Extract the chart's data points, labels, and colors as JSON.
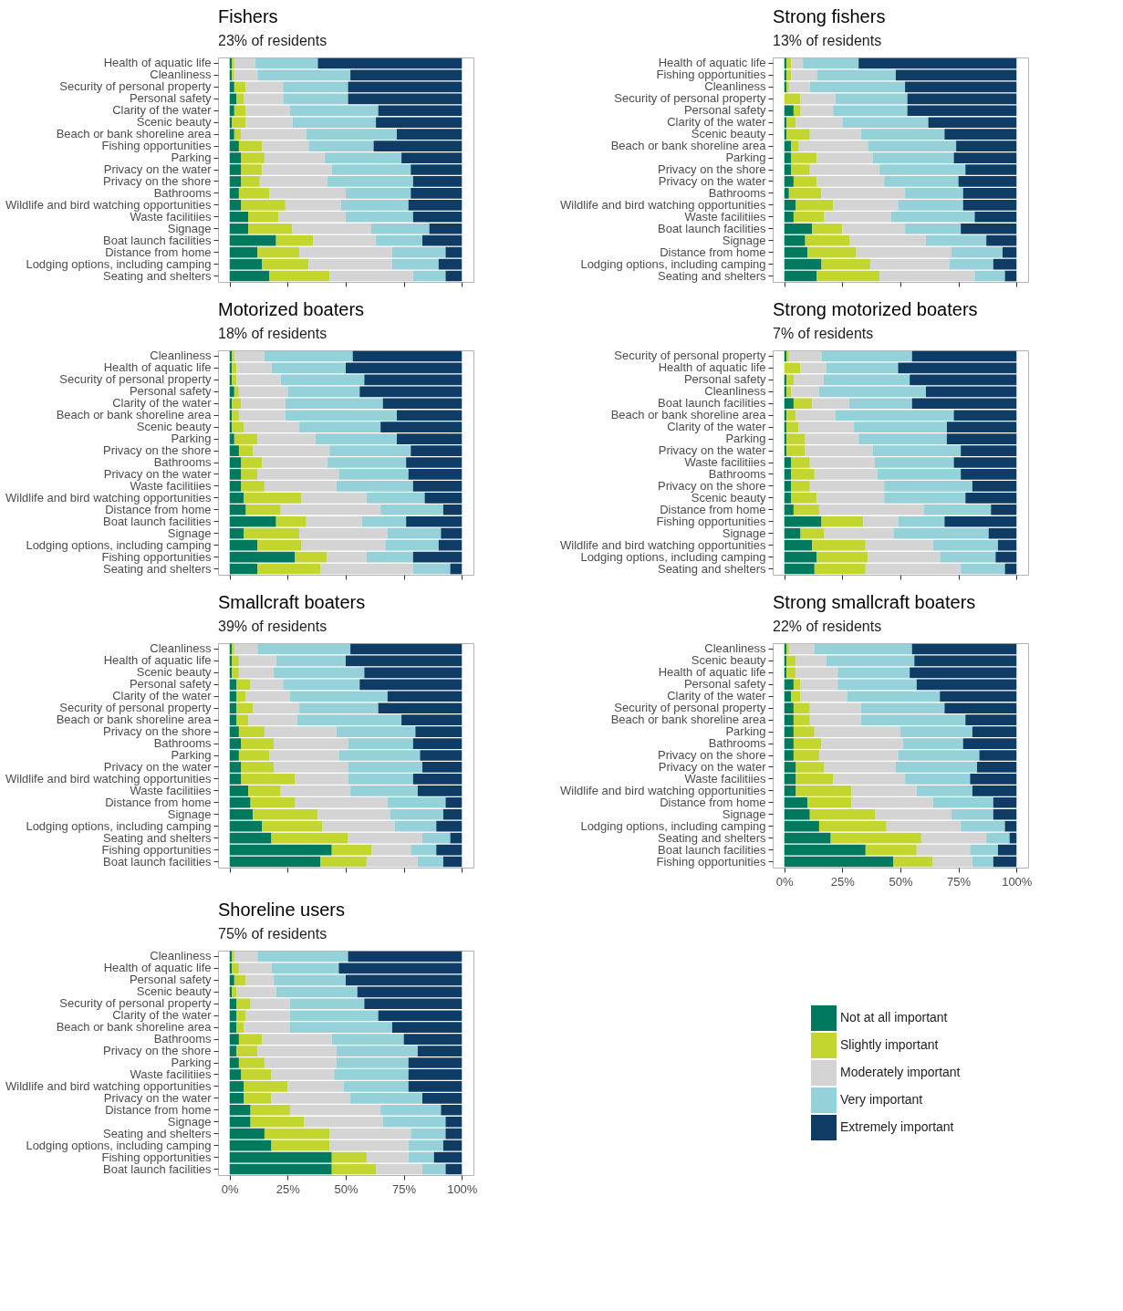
{
  "chart_data": [
    {
      "type": "bar",
      "orientation": "horizontal",
      "stacked": true,
      "title": "Fishers",
      "subtitle": "23% of residents",
      "xlim": [
        -5,
        105
      ],
      "xticks": [
        {
          "value": 0,
          "label": null
        },
        {
          "value": 25,
          "label": null
        },
        {
          "value": 50,
          "label": null
        },
        {
          "value": 75,
          "label": null
        },
        {
          "value": 100,
          "label": null
        }
      ],
      "tick_labels": "y",
      "categories": [
        "Health of aquatic life",
        "Cleanliness",
        "Security of personal property",
        "Personal safety",
        "Clarity of the water",
        "Scenic beauty",
        "Beach or bank shoreline area",
        "Fishing opportunities",
        "Parking",
        "Privacy on the water",
        "Privacy on the shore",
        "Bathrooms",
        "Wildlife and bird watching opportunities",
        "Waste facilitiies",
        "Signage",
        "Boat launch facilities",
        "Distance from home",
        "Lodging options, including camping",
        "Seating and shelters"
      ],
      "series": [
        {
          "color": "#007a5e",
          "values": [
            1,
            1,
            2,
            3,
            2,
            1,
            2,
            4,
            5,
            5,
            5,
            4,
            5,
            8,
            8,
            20,
            12,
            14,
            17
          ]
        },
        {
          "color": "#c3d52f",
          "values": [
            1,
            1,
            5,
            3,
            5,
            6,
            3,
            10,
            10,
            9,
            8,
            13,
            19,
            13,
            19,
            16,
            18,
            20,
            26
          ]
        },
        {
          "color": "#d4d4d4",
          "values": [
            9,
            10,
            16,
            17,
            19,
            20,
            28,
            20,
            26,
            30,
            29,
            33,
            24,
            29,
            34,
            27,
            40,
            36,
            36
          ]
        },
        {
          "color": "#95d1d9",
          "values": [
            27,
            40,
            28,
            28,
            38,
            36,
            39,
            28,
            33,
            34,
            37,
            28,
            29,
            29,
            25,
            20,
            23,
            20,
            14
          ]
        },
        {
          "color": "#0e3c65",
          "values": [
            62,
            48,
            49,
            49,
            36,
            37,
            28,
            38,
            26,
            22,
            21,
            22,
            23,
            21,
            14,
            17,
            7,
            10,
            7
          ]
        }
      ]
    },
    {
      "type": "bar",
      "orientation": "horizontal",
      "stacked": true,
      "title": "Strong fishers",
      "subtitle": "13% of residents",
      "xlim": [
        -5,
        105
      ],
      "xticks": [
        {
          "value": 0,
          "label": null
        },
        {
          "value": 25,
          "label": null
        },
        {
          "value": 50,
          "label": null
        },
        {
          "value": 75,
          "label": null
        },
        {
          "value": 100,
          "label": null
        }
      ],
      "tick_labels": "y",
      "categories": [
        "Health of aquatic life",
        "Fishing opportunities",
        "Cleanliness",
        "Security of personal property",
        "Personal safety",
        "Clarity of the water",
        "Scenic beauty",
        "Beach or bank shoreline area",
        "Parking",
        "Privacy on the shore",
        "Privacy on the water",
        "Bathrooms",
        "Wildlife and bird watching opportunities",
        "Waste facilitiies",
        "Boat launch facilities",
        "Signage",
        "Distance from home",
        "Lodging options, including camping",
        "Seating and shelters"
      ],
      "series": [
        {
          "color": "#007a5e",
          "values": [
            1,
            1,
            1,
            0,
            4,
            1,
            1,
            3,
            3,
            3,
            4,
            2,
            5,
            4,
            12,
            9,
            10,
            16,
            14
          ]
        },
        {
          "color": "#c3d52f",
          "values": [
            2,
            2,
            1,
            7,
            3,
            4,
            10,
            3,
            11,
            8,
            10,
            14,
            16,
            13,
            13,
            19,
            21,
            21,
            27
          ]
        },
        {
          "color": "#d4d4d4",
          "values": [
            5,
            11,
            9,
            15,
            14,
            20,
            22,
            30,
            24,
            30,
            29,
            36,
            28,
            29,
            27,
            33,
            41,
            34,
            41
          ]
        },
        {
          "color": "#95d1d9",
          "values": [
            24,
            34,
            41,
            31,
            32,
            37,
            36,
            38,
            35,
            37,
            32,
            25,
            28,
            36,
            24,
            26,
            22,
            19,
            13
          ]
        },
        {
          "color": "#0e3c65",
          "values": [
            68,
            52,
            48,
            47,
            47,
            38,
            31,
            26,
            27,
            22,
            25,
            23,
            23,
            18,
            24,
            13,
            6,
            10,
            5
          ]
        }
      ]
    },
    {
      "type": "bar",
      "orientation": "horizontal",
      "stacked": true,
      "title": "Motorized boaters",
      "subtitle": "18% of residents",
      "xlim": [
        -5,
        105
      ],
      "xticks": [
        {
          "value": 0,
          "label": null
        },
        {
          "value": 25,
          "label": null
        },
        {
          "value": 50,
          "label": null
        },
        {
          "value": 75,
          "label": null
        },
        {
          "value": 100,
          "label": null
        }
      ],
      "tick_labels": "y",
      "categories": [
        "Cleanliness",
        "Health of aquatic life",
        "Security of personal property",
        "Personal safety",
        "Clarity of the water",
        "Beach or bank shoreline area",
        "Scenic beauty",
        "Parking",
        "Privacy on the shore",
        "Bathrooms",
        "Privacy on the water",
        "Waste facilitiies",
        "Wildlife and bird watching opportunities",
        "Distance from home",
        "Boat launch facilities",
        "Signage",
        "Lodging options, including camping",
        "Fishing opportunities",
        "Seating and shelters"
      ],
      "series": [
        {
          "color": "#007a5e",
          "values": [
            1,
            1,
            1,
            2,
            1,
            1,
            1,
            2,
            4,
            5,
            5,
            5,
            6,
            7,
            20,
            6,
            12,
            28,
            12
          ]
        },
        {
          "color": "#c3d52f",
          "values": [
            1,
            2,
            2,
            2,
            4,
            3,
            5,
            10,
            6,
            9,
            7,
            10,
            25,
            15,
            13,
            24,
            19,
            14,
            27
          ]
        },
        {
          "color": "#d4d4d4",
          "values": [
            13,
            15,
            19,
            21,
            19,
            20,
            24,
            25,
            33,
            28,
            35,
            31,
            28,
            43,
            24,
            38,
            36,
            17,
            40
          ]
        },
        {
          "color": "#95d1d9",
          "values": [
            38,
            32,
            36,
            31,
            42,
            48,
            35,
            35,
            35,
            34,
            30,
            33,
            25,
            27,
            19,
            23,
            23,
            20,
            16
          ]
        },
        {
          "color": "#0e3c65",
          "values": [
            47,
            50,
            42,
            44,
            34,
            28,
            35,
            28,
            22,
            24,
            23,
            21,
            16,
            8,
            24,
            9,
            10,
            21,
            5
          ]
        }
      ]
    },
    {
      "type": "bar",
      "orientation": "horizontal",
      "stacked": true,
      "title": "Strong motorized boaters",
      "subtitle": "7% of residents",
      "xlim": [
        -5,
        105
      ],
      "xticks": [
        {
          "value": 0,
          "label": null
        },
        {
          "value": 25,
          "label": null
        },
        {
          "value": 50,
          "label": null
        },
        {
          "value": 75,
          "label": null
        },
        {
          "value": 100,
          "label": null
        }
      ],
      "tick_labels": "y",
      "categories": [
        "Security of personal property",
        "Health of aquatic life",
        "Personal safety",
        "Cleanliness",
        "Boat launch facilities",
        "Beach or bank shoreline area",
        "Clarity of the water",
        "Parking",
        "Privacy on the water",
        "Waste facilitiies",
        "Bathrooms",
        "Privacy on the shore",
        "Scenic beauty",
        "Distance from home",
        "Fishing opportunities",
        "Signage",
        "Wildlife and bird watching opportunities",
        "Lodging options, including camping",
        "Seating and shelters"
      ],
      "series": [
        {
          "color": "#007a5e",
          "values": [
            1,
            0,
            1,
            1,
            4,
            1,
            1,
            1,
            1,
            3,
            3,
            3,
            3,
            4,
            16,
            7,
            12,
            14,
            13
          ]
        },
        {
          "color": "#c3d52f",
          "values": [
            1,
            7,
            3,
            2,
            8,
            4,
            5,
            8,
            8,
            8,
            10,
            8,
            11,
            11,
            18,
            10,
            23,
            22,
            22
          ]
        },
        {
          "color": "#d4d4d4",
          "values": [
            14,
            11,
            13,
            12,
            16,
            17,
            24,
            23,
            29,
            28,
            27,
            32,
            29,
            45,
            15,
            30,
            29,
            31,
            41
          ]
        },
        {
          "color": "#95d1d9",
          "values": [
            39,
            31,
            37,
            46,
            27,
            51,
            40,
            38,
            38,
            34,
            36,
            38,
            35,
            29,
            20,
            41,
            28,
            24,
            19
          ]
        },
        {
          "color": "#0e3c65",
          "values": [
            45,
            51,
            46,
            39,
            45,
            27,
            30,
            30,
            24,
            27,
            24,
            19,
            22,
            11,
            31,
            12,
            8,
            9,
            5
          ]
        }
      ]
    },
    {
      "type": "bar",
      "orientation": "horizontal",
      "stacked": true,
      "title": "Smallcraft boaters",
      "subtitle": "39% of residents",
      "xlim": [
        -5,
        105
      ],
      "xticks": [
        {
          "value": 0,
          "label": null
        },
        {
          "value": 25,
          "label": null
        },
        {
          "value": 50,
          "label": null
        },
        {
          "value": 75,
          "label": null
        },
        {
          "value": 100,
          "label": null
        }
      ],
      "tick_labels": "y",
      "categories": [
        "Cleanliness",
        "Health of aquatic life",
        "Scenic beauty",
        "Personal safety",
        "Clarity of the water",
        "Security of personal property",
        "Beach or bank shoreline area",
        "Privacy on the shore",
        "Bathrooms",
        "Parking",
        "Privacy on the water",
        "Wildlife and bird watching opportunities",
        "Waste facilitiies",
        "Distance from home",
        "Signage",
        "Lodging options, including camping",
        "Seating and shelters",
        "Fishing opportunities",
        "Boat launch facilities"
      ],
      "series": [
        {
          "color": "#007a5e",
          "values": [
            1,
            1,
            1,
            3,
            3,
            3,
            3,
            4,
            5,
            4,
            5,
            5,
            8,
            9,
            10,
            14,
            18,
            44,
            39
          ]
        },
        {
          "color": "#c3d52f",
          "values": [
            1,
            3,
            3,
            6,
            4,
            7,
            5,
            11,
            14,
            13,
            14,
            23,
            14,
            19,
            28,
            26,
            33,
            17,
            20
          ]
        },
        {
          "color": "#d4d4d4",
          "values": [
            10,
            16,
            15,
            14,
            19,
            20,
            21,
            31,
            32,
            30,
            32,
            23,
            30,
            40,
            31,
            31,
            32,
            17,
            22
          ]
        },
        {
          "color": "#95d1d9",
          "values": [
            40,
            30,
            39,
            33,
            42,
            34,
            45,
            34,
            28,
            35,
            32,
            28,
            29,
            25,
            23,
            18,
            12,
            11,
            11
          ]
        },
        {
          "color": "#0e3c65",
          "values": [
            48,
            50,
            42,
            44,
            32,
            36,
            26,
            20,
            21,
            18,
            17,
            21,
            19,
            7,
            8,
            11,
            5,
            11,
            8
          ]
        }
      ]
    },
    {
      "type": "bar",
      "orientation": "horizontal",
      "stacked": true,
      "title": "Strong smallcraft boaters",
      "subtitle": "22% of residents",
      "xlim": [
        -5,
        105
      ],
      "xticks": [
        {
          "value": 0,
          "label": "0%"
        },
        {
          "value": 25,
          "label": "25%"
        },
        {
          "value": 50,
          "label": "50%"
        },
        {
          "value": 75,
          "label": "75%"
        },
        {
          "value": 100,
          "label": "100%"
        }
      ],
      "categories": [
        "Cleanliness",
        "Scenic beauty",
        "Health of aquatic life",
        "Personal safety",
        "Clarity of the water",
        "Security of personal property",
        "Beach or bank shoreline area",
        "Parking",
        "Bathrooms",
        "Privacy on the shore",
        "Privacy on the water",
        "Waste facilitiies",
        "Wildlife and bird watching opportunities",
        "Distance from home",
        "Signage",
        "Lodging options, including camping",
        "Seating and shelters",
        "Boat launch facilities",
        "Fishing opportunities"
      ],
      "series": [
        {
          "color": "#007a5e",
          "values": [
            1,
            1,
            1,
            4,
            3,
            4,
            4,
            4,
            4,
            4,
            5,
            5,
            5,
            10,
            11,
            15,
            20,
            35,
            47
          ]
        },
        {
          "color": "#c3d52f",
          "values": [
            1,
            4,
            4,
            3,
            4,
            7,
            7,
            9,
            12,
            11,
            12,
            16,
            24,
            19,
            28,
            29,
            39,
            22,
            17
          ]
        },
        {
          "color": "#d4d4d4",
          "values": [
            11,
            13,
            18,
            16,
            20,
            22,
            22,
            37,
            35,
            34,
            31,
            31,
            28,
            35,
            33,
            32,
            28,
            23,
            17
          ]
        },
        {
          "color": "#95d1d9",
          "values": [
            42,
            38,
            31,
            34,
            40,
            36,
            45,
            31,
            26,
            35,
            35,
            28,
            24,
            26,
            18,
            19,
            10,
            12,
            9
          ]
        },
        {
          "color": "#0e3c65",
          "values": [
            45,
            44,
            46,
            43,
            33,
            31,
            22,
            19,
            23,
            16,
            17,
            20,
            19,
            10,
            10,
            5,
            3,
            8,
            10
          ]
        }
      ]
    },
    {
      "type": "bar",
      "orientation": "horizontal",
      "stacked": true,
      "title": "Shoreline users",
      "subtitle": "75% of residents",
      "xlim": [
        -5,
        105
      ],
      "xticks": [
        {
          "value": 0,
          "label": "0%"
        },
        {
          "value": 25,
          "label": "25%"
        },
        {
          "value": 50,
          "label": "50%"
        },
        {
          "value": 75,
          "label": "75%"
        },
        {
          "value": 100,
          "label": "100%"
        }
      ],
      "legend": "bottom right",
      "categories": [
        "Cleanliness",
        "Health of aquatic life",
        "Personal safety",
        "Scenic beauty",
        "Security of personal property",
        "Clarity of the water",
        "Beach or bank shoreline area",
        "Bathrooms",
        "Privacy on the shore",
        "Parking",
        "Waste facilitiies",
        "Wildlife and bird watching opportunities",
        "Privacy on the water",
        "Distance from home",
        "Signage",
        "Seating and shelters",
        "Lodging options, including camping",
        "Fishing opportunities",
        "Boat launch facilities"
      ],
      "series": [
        {
          "name": "Not at all important",
          "color": "#007a5e",
          "values": [
            1,
            1,
            2,
            1,
            3,
            3,
            3,
            4,
            3,
            4,
            5,
            6,
            6,
            9,
            9,
            15,
            18,
            44,
            44
          ]
        },
        {
          "name": "Slightly important",
          "color": "#c3d52f",
          "values": [
            1,
            3,
            5,
            2,
            6,
            4,
            3,
            10,
            9,
            11,
            13,
            19,
            12,
            17,
            23,
            28,
            25,
            15,
            19
          ]
        },
        {
          "name": "Moderately important",
          "color": "#d4d4d4",
          "values": [
            10,
            14,
            12,
            17,
            17,
            19,
            20,
            30,
            34,
            31,
            27,
            24,
            34,
            39,
            34,
            35,
            34,
            18,
            20
          ]
        },
        {
          "name": "Very important",
          "color": "#95d1d9",
          "values": [
            39,
            29,
            31,
            35,
            32,
            38,
            44,
            31,
            35,
            31,
            32,
            28,
            31,
            26,
            27,
            15,
            15,
            11,
            10
          ]
        },
        {
          "name": "Extremely important",
          "color": "#0e3c65",
          "values": [
            49,
            53,
            50,
            45,
            42,
            36,
            30,
            25,
            19,
            23,
            23,
            23,
            17,
            9,
            7,
            7,
            8,
            12,
            7
          ]
        }
      ]
    }
  ]
}
